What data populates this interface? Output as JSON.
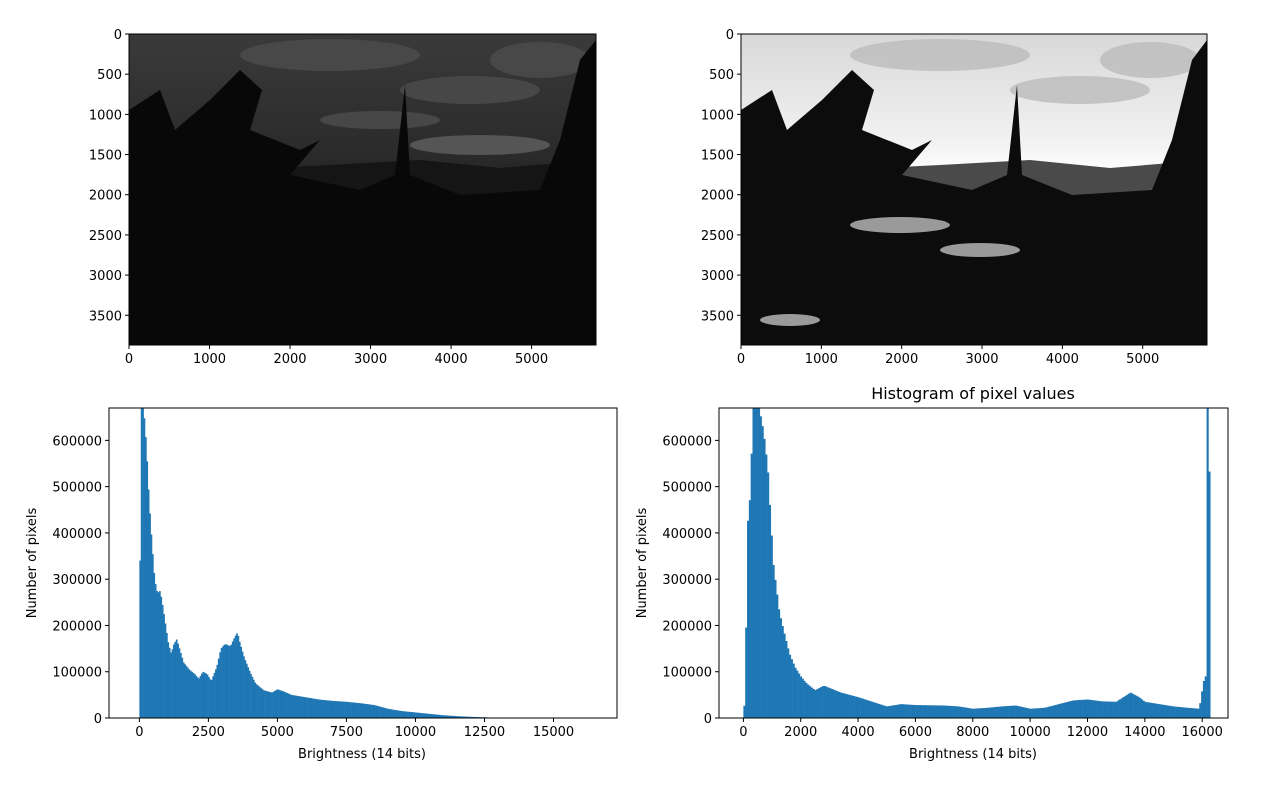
{
  "chart_data": [
    {
      "type": "image",
      "panel": "top-left",
      "description_visible": "dark grayscale photo of forest silhouette and clouds",
      "xlim": [
        0,
        5800
      ],
      "ylim": [
        3870,
        0
      ],
      "xticks": [
        0,
        1000,
        2000,
        3000,
        4000,
        5000
      ],
      "yticks": [
        0,
        500,
        1000,
        1500,
        2000,
        2500,
        3000,
        3500
      ],
      "tone": "dark"
    },
    {
      "type": "image",
      "panel": "top-right",
      "description_visible": "contrast-stretched grayscale photo of forest silhouette and bright sky",
      "xlim": [
        0,
        5800
      ],
      "ylim": [
        3870,
        0
      ],
      "xticks": [
        0,
        1000,
        2000,
        3000,
        4000,
        5000
      ],
      "yticks": [
        0,
        500,
        1000,
        1500,
        2000,
        2500,
        3000,
        3500
      ],
      "tone": "stretched"
    },
    {
      "type": "histogram",
      "panel": "bottom-left",
      "title": "",
      "xlabel": "Brightness (14 bits)",
      "ylabel": "Number of pixels",
      "xlim": [
        -1100,
        17300
      ],
      "ylim": [
        0,
        670000
      ],
      "xticks": [
        0,
        2500,
        5000,
        7500,
        10000,
        12500,
        15000
      ],
      "yticks": [
        0,
        100000,
        200000,
        300000,
        400000,
        500000,
        600000
      ],
      "bar_color": "#1f77b4",
      "curve": [
        [
          0,
          0
        ],
        [
          50,
          670000
        ],
        [
          150,
          670000
        ],
        [
          250,
          590000
        ],
        [
          350,
          470000
        ],
        [
          450,
          380000
        ],
        [
          550,
          300000
        ],
        [
          650,
          270000
        ],
        [
          750,
          275000
        ],
        [
          850,
          240000
        ],
        [
          950,
          200000
        ],
        [
          1050,
          160000
        ],
        [
          1150,
          140000
        ],
        [
          1250,
          160000
        ],
        [
          1350,
          170000
        ],
        [
          1450,
          150000
        ],
        [
          1600,
          120000
        ],
        [
          1800,
          105000
        ],
        [
          2000,
          95000
        ],
        [
          2150,
          85000
        ],
        [
          2300,
          100000
        ],
        [
          2450,
          95000
        ],
        [
          2600,
          80000
        ],
        [
          2800,
          110000
        ],
        [
          2950,
          150000
        ],
        [
          3100,
          160000
        ],
        [
          3300,
          155000
        ],
        [
          3450,
          175000
        ],
        [
          3550,
          185000
        ],
        [
          3650,
          160000
        ],
        [
          3800,
          130000
        ],
        [
          4000,
          100000
        ],
        [
          4200,
          75000
        ],
        [
          4500,
          60000
        ],
        [
          4800,
          55000
        ],
        [
          5000,
          62000
        ],
        [
          5200,
          58000
        ],
        [
          5500,
          50000
        ],
        [
          6000,
          45000
        ],
        [
          6500,
          40000
        ],
        [
          7000,
          37000
        ],
        [
          7500,
          35000
        ],
        [
          8000,
          32000
        ],
        [
          8500,
          28000
        ],
        [
          9000,
          20000
        ],
        [
          9500,
          15000
        ],
        [
          10000,
          12000
        ],
        [
          10500,
          9000
        ],
        [
          11000,
          6000
        ],
        [
          11500,
          4000
        ],
        [
          12000,
          2500
        ],
        [
          12500,
          1500
        ],
        [
          12800,
          800
        ],
        [
          13000,
          0
        ]
      ]
    },
    {
      "type": "histogram",
      "panel": "bottom-right",
      "title": "Histogram of pixel values",
      "xlabel": "Brightness (14 bits)",
      "ylabel": "Number of pixels",
      "xlim": [
        -850,
        16900
      ],
      "ylim": [
        0,
        670000
      ],
      "xticks": [
        0,
        2000,
        4000,
        6000,
        8000,
        10000,
        12000,
        14000,
        16000
      ],
      "yticks": [
        0,
        100000,
        200000,
        300000,
        400000,
        500000,
        600000
      ],
      "bar_color": "#1f77b4",
      "curve": [
        [
          0,
          0
        ],
        [
          60,
          50000
        ],
        [
          150,
          420000
        ],
        [
          250,
          490000
        ],
        [
          330,
          670000
        ],
        [
          550,
          670000
        ],
        [
          700,
          620000
        ],
        [
          850,
          540000
        ],
        [
          950,
          430000
        ],
        [
          1050,
          330000
        ],
        [
          1150,
          280000
        ],
        [
          1250,
          230000
        ],
        [
          1400,
          190000
        ],
        [
          1600,
          140000
        ],
        [
          1800,
          110000
        ],
        [
          2000,
          90000
        ],
        [
          2200,
          75000
        ],
        [
          2500,
          60000
        ],
        [
          2800,
          70000
        ],
        [
          3000,
          65000
        ],
        [
          3400,
          55000
        ],
        [
          4000,
          45000
        ],
        [
          4500,
          35000
        ],
        [
          5000,
          25000
        ],
        [
          5500,
          30000
        ],
        [
          6000,
          28000
        ],
        [
          7000,
          27000
        ],
        [
          7500,
          25000
        ],
        [
          8000,
          20000
        ],
        [
          8500,
          22000
        ],
        [
          9000,
          25000
        ],
        [
          9500,
          27000
        ],
        [
          10000,
          20000
        ],
        [
          10500,
          22000
        ],
        [
          11000,
          30000
        ],
        [
          11500,
          38000
        ],
        [
          12000,
          40000
        ],
        [
          12500,
          36000
        ],
        [
          13000,
          35000
        ],
        [
          13500,
          55000
        ],
        [
          13800,
          45000
        ],
        [
          14000,
          35000
        ],
        [
          14500,
          30000
        ],
        [
          15000,
          25000
        ],
        [
          15500,
          22000
        ],
        [
          15900,
          20000
        ],
        [
          16050,
          80000
        ],
        [
          16120,
          80000
        ],
        [
          16180,
          670000
        ],
        [
          16240,
          670000
        ],
        [
          16280,
          0
        ]
      ]
    }
  ]
}
